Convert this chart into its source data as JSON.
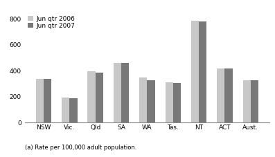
{
  "categories": [
    "NSW",
    "Vic.",
    "Qld",
    "SA",
    "WA",
    "Tas.",
    "NT",
    "ACT",
    "Aust."
  ],
  "values_2006": [
    340,
    195,
    395,
    460,
    350,
    310,
    785,
    415,
    325
  ],
  "values_2007": [
    340,
    190,
    385,
    460,
    325,
    305,
    780,
    415,
    325
  ],
  "color_2006": "#c8c8c8",
  "color_2007": "#787878",
  "legend_labels": [
    "Jun qtr 2006",
    "Jun qtr 2007"
  ],
  "ylim": [
    0,
    850
  ],
  "yticks": [
    0,
    200,
    400,
    600,
    800
  ],
  "footnote": "(a) Rate per 100,000 adult population.",
  "bar_width": 0.3,
  "figsize": [
    3.97,
    2.27
  ],
  "dpi": 100
}
